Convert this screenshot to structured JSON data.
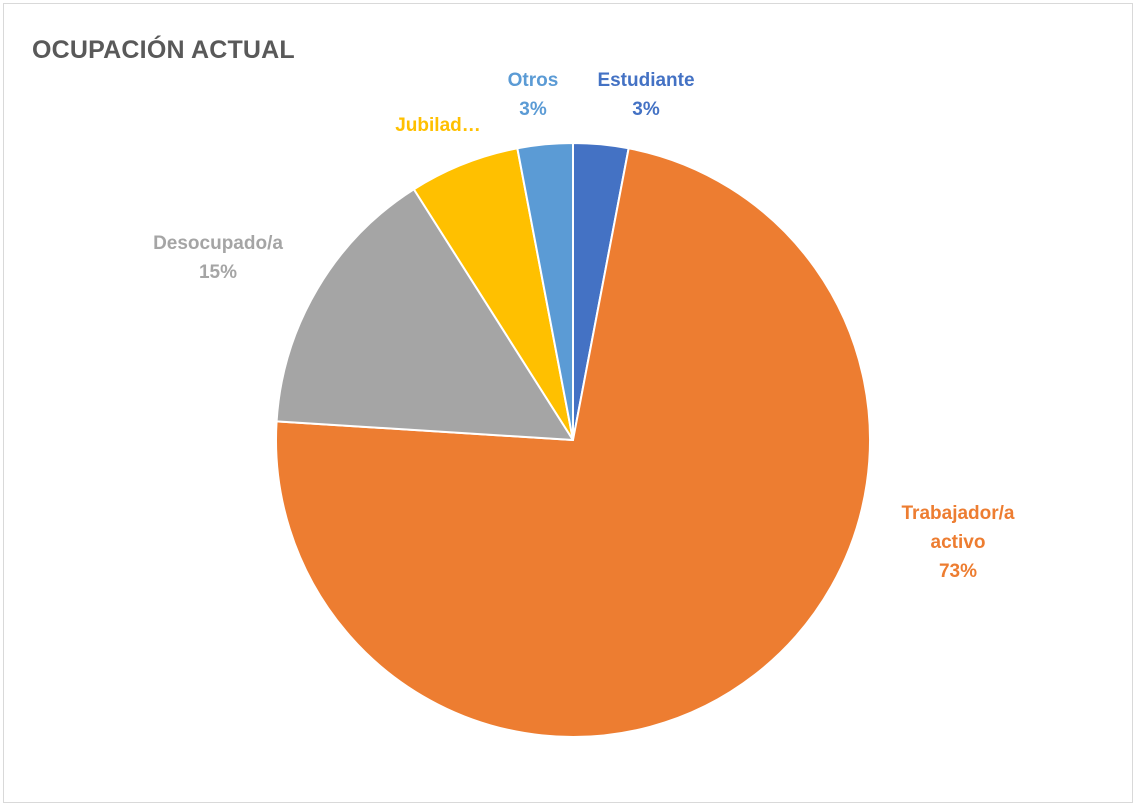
{
  "chart_data": {
    "type": "pie",
    "title": "OCUPACIÓN ACTUAL",
    "slices": [
      {
        "name": "Estudiante",
        "value": 3,
        "label": "3%",
        "color": "#4472c4"
      },
      {
        "name": "Trabajador/a activo",
        "name_lines": [
          "Trabajador/a",
          "activo"
        ],
        "value": 73,
        "label": "73%",
        "color": "#ed7d31"
      },
      {
        "name": "Desocupado/a",
        "value": 15,
        "label": "15%",
        "color": "#a5a5a5"
      },
      {
        "name": "Jubilad…",
        "value": 6,
        "label": "",
        "color": "#ffc000"
      },
      {
        "name": "Otros",
        "value": 3,
        "label": "3%",
        "color": "#5b9bd5"
      }
    ],
    "start_angle_deg": 0,
    "direction": "clockwise",
    "legend": "none"
  }
}
